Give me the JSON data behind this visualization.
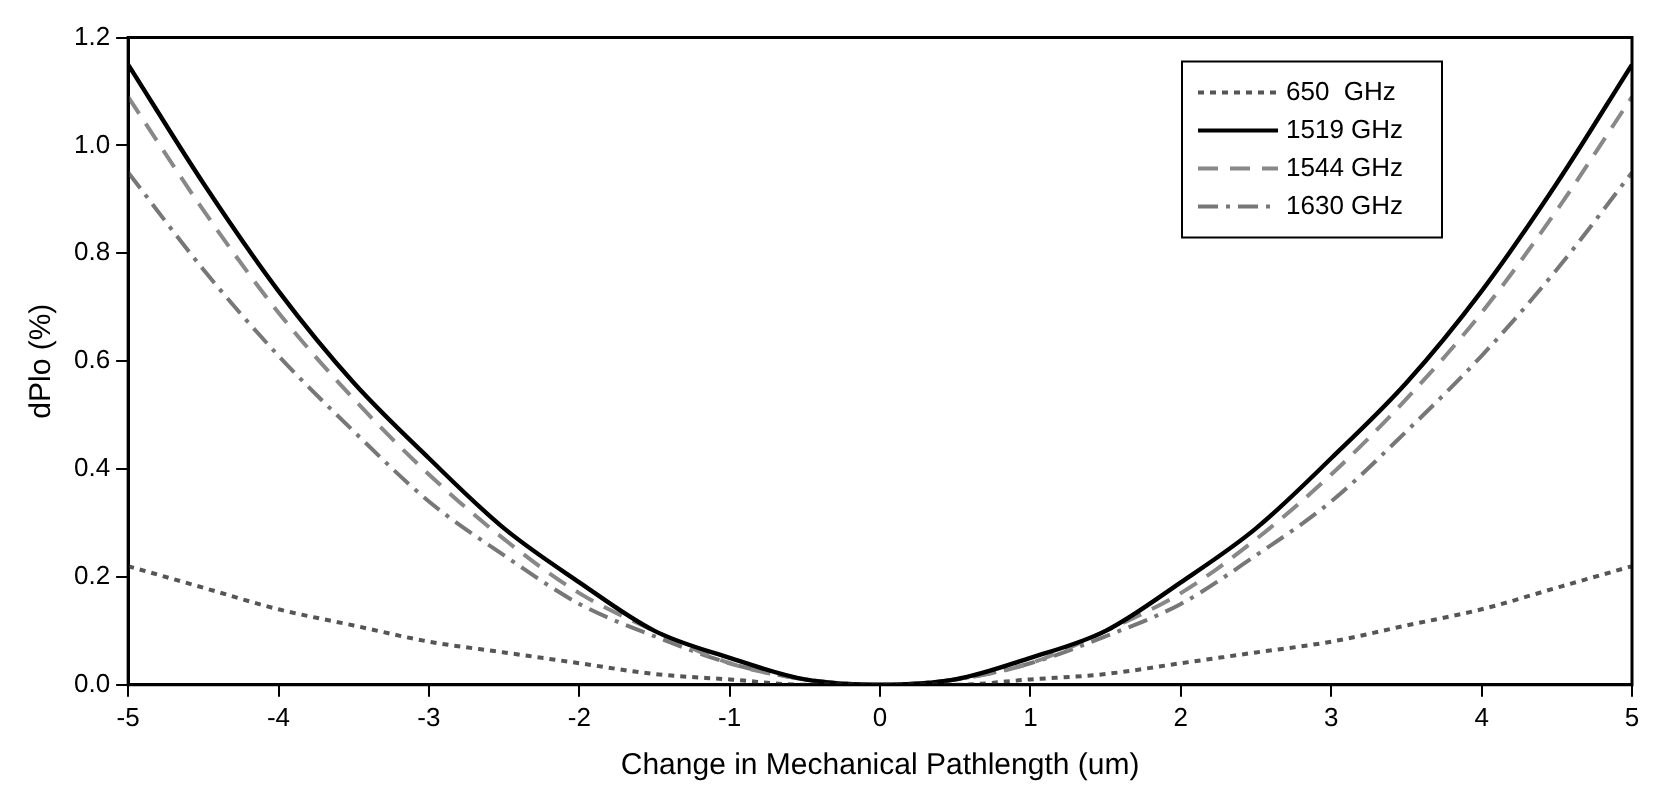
{
  "chart_data": {
    "type": "line",
    "xlabel": "Change in Mechanical Pathlength (um)",
    "ylabel": "dPlo (%)",
    "x": [
      -5,
      -4.5,
      -4,
      -3.5,
      -3,
      -2.5,
      -2,
      -1.5,
      -1,
      -0.5,
      0,
      0.5,
      1,
      1.5,
      2,
      2.5,
      3,
      3.5,
      4,
      4.5,
      5
    ],
    "series": [
      {
        "name": "650  GHz",
        "color": "#555555",
        "line_style": "dotted",
        "values": [
          0.22,
          0.18,
          0.14,
          0.11,
          0.08,
          0.06,
          0.04,
          0.02,
          0.01,
          0,
          0,
          0,
          0.01,
          0.02,
          0.04,
          0.06,
          0.08,
          0.11,
          0.14,
          0.18,
          0.22
        ]
      },
      {
        "name": "1519 GHz",
        "color": "#000000",
        "line_style": "solid",
        "values": [
          1.15,
          0.93,
          0.73,
          0.56,
          0.42,
          0.29,
          0.19,
          0.1,
          0.05,
          0.01,
          0,
          0.01,
          0.05,
          0.1,
          0.19,
          0.29,
          0.42,
          0.56,
          0.73,
          0.93,
          1.15
        ]
      },
      {
        "name": "1544 GHz",
        "color": "#888888",
        "line_style": "dashed",
        "values": [
          1.09,
          0.88,
          0.69,
          0.53,
          0.39,
          0.27,
          0.17,
          0.1,
          0.04,
          0.01,
          0,
          0.01,
          0.04,
          0.1,
          0.17,
          0.27,
          0.39,
          0.53,
          0.69,
          0.88,
          1.09
        ]
      },
      {
        "name": "1630 GHz",
        "color": "#777777",
        "line_style": "dashdot",
        "values": [
          0.95,
          0.77,
          0.61,
          0.47,
          0.34,
          0.24,
          0.15,
          0.09,
          0.04,
          0.01,
          0,
          0.01,
          0.04,
          0.09,
          0.15,
          0.24,
          0.34,
          0.47,
          0.61,
          0.77,
          0.95
        ]
      }
    ],
    "xlim": [
      -5,
      5
    ],
    "xticks": [
      -5,
      -4,
      -3,
      -2,
      -1,
      0,
      1,
      2,
      3,
      4,
      5
    ],
    "ylim": [
      0,
      1.2
    ],
    "yticks": [
      {
        "value": 0,
        "label": "0.0"
      },
      {
        "value": 0.2,
        "label": "0.2"
      },
      {
        "value": 0.4,
        "label": "0.4"
      },
      {
        "value": 0.6,
        "label": "0.6"
      },
      {
        "value": 0.8,
        "label": "0.8"
      },
      {
        "value": 1,
        "label": "1.0"
      },
      {
        "value": 1.2,
        "label": "1.2"
      }
    ],
    "grid": false,
    "legend": "top right",
    "marker": "none"
  }
}
